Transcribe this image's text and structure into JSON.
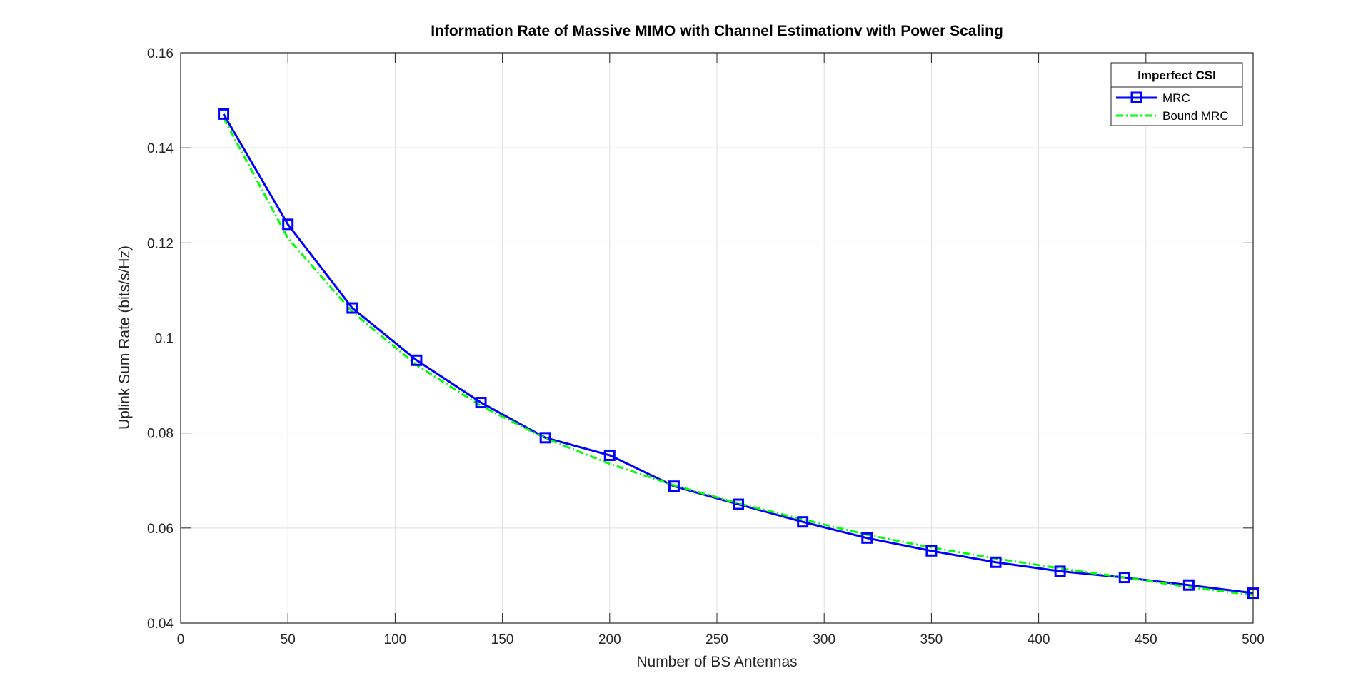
{
  "chart_data": {
    "type": "line",
    "title": "Information Rate of Massive MIMO with Channel Estimationv with Power Scaling",
    "xlabel": "Number of BS Antennas",
    "ylabel": "Uplink Sum Rate (bits/s/Hz)",
    "xlim": [
      0,
      500
    ],
    "ylim": [
      0.04,
      0.16
    ],
    "xticks": [
      0,
      50,
      100,
      150,
      200,
      250,
      300,
      350,
      400,
      450,
      500
    ],
    "yticks": [
      0.04,
      0.06,
      0.08,
      0.1,
      0.12,
      0.14,
      0.16
    ],
    "xtick_labels": [
      "0",
      "50",
      "100",
      "150",
      "200",
      "250",
      "300",
      "350",
      "400",
      "450",
      "500"
    ],
    "ytick_labels": [
      "0.04",
      "0.06",
      "0.08",
      "0.1",
      "0.12",
      "0.14",
      "0.16"
    ],
    "grid": true,
    "legend": {
      "title": "Imperfect CSI",
      "placement": "top-right"
    },
    "x": [
      20,
      50,
      80,
      110,
      140,
      170,
      200,
      230,
      260,
      290,
      320,
      350,
      380,
      410,
      440,
      470,
      500
    ],
    "series": [
      {
        "name": "MRC",
        "color": "#0000ff",
        "marker": "square",
        "line_style": "solid",
        "values": [
          0.1471,
          0.1239,
          0.1063,
          0.0953,
          0.0864,
          0.079,
          0.0753,
          0.0688,
          0.065,
          0.0613,
          0.0579,
          0.0552,
          0.0528,
          0.0509,
          0.0496,
          0.048,
          0.0463
        ]
      },
      {
        "name": "Bound MRC",
        "color": "#00ff00",
        "marker": "none",
        "line_style": "dash-dot",
        "values": [
          0.1463,
          0.121,
          0.1055,
          0.0943,
          0.0857,
          0.0789,
          0.0735,
          0.069,
          0.0652,
          0.0618,
          0.0586,
          0.0559,
          0.0536,
          0.0515,
          0.0496,
          0.0476,
          0.0459
        ]
      }
    ]
  }
}
